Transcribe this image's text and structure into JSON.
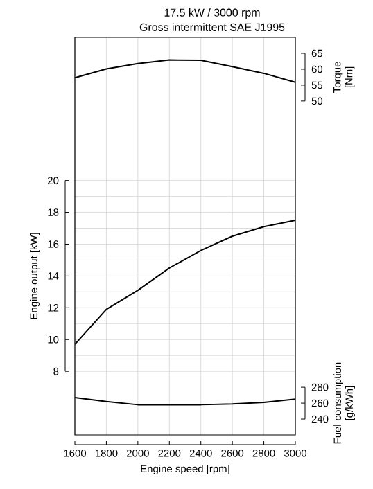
{
  "chart_data": {
    "type": "line",
    "title": "17.5 kW / 3000 rpm",
    "subtitle": "Gross intermittent SAE J1995",
    "xlabel": "Engine speed [rpm]",
    "ylabel": "Engine output [kW]",
    "y2label": "Torque [Nm]",
    "y3label": "Fuel consumption [g/kWh]",
    "x": [
      1600,
      1800,
      2000,
      2200,
      2400,
      2600,
      2800,
      3000
    ],
    "xlim": [
      1600,
      3000
    ],
    "xticks": [
      1600,
      1800,
      2000,
      2200,
      2400,
      2600,
      2800,
      3000
    ],
    "ylim": [
      4,
      29
    ],
    "yticks": [
      8,
      10,
      12,
      14,
      16,
      18,
      20
    ],
    "y2lim": [
      -55,
      70
    ],
    "y2ticks": [
      50,
      55,
      60,
      65
    ],
    "y3lim": [
      220,
      720
    ],
    "y3ticks": [
      240,
      260,
      280
    ],
    "grid": true,
    "series": [
      {
        "color": "#000000",
        "axis": "y2",
        "values": [
          57.3,
          60.1,
          61.8,
          62.9,
          62.8,
          60.8,
          58.7,
          55.9
        ]
      },
      {
        "color": "#000000",
        "values": [
          9.7,
          11.9,
          13.1,
          14.5,
          15.6,
          16.5,
          17.1,
          17.5
        ]
      },
      {
        "color": "#000000",
        "axis": "y3",
        "values": [
          267,
          262,
          258,
          258,
          258,
          259,
          261,
          265
        ]
      }
    ]
  }
}
